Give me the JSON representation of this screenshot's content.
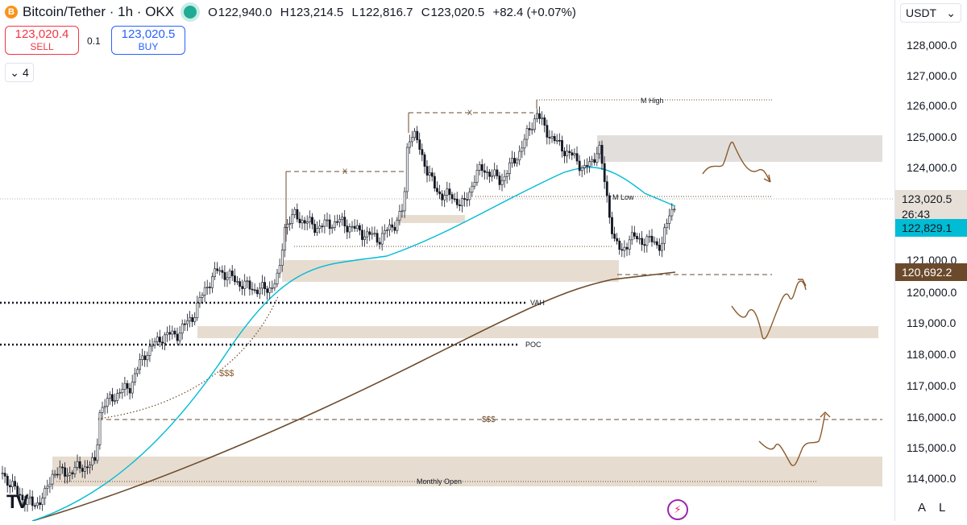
{
  "header": {
    "symbol": "Bitcoin/Tether",
    "sep1": "·",
    "interval": "1h",
    "sep2": "·",
    "exchange": "OKX",
    "coin_icon": "B",
    "ohlc": {
      "o_label": "O",
      "o": "122,940.0",
      "h_label": "H",
      "h": "123,214.5",
      "l_label": "L",
      "l": "122,816.7",
      "c_label": "C",
      "c": "123,020.5",
      "change": "+82.4 (+0.07%)"
    }
  },
  "trade": {
    "sell_price": "123,020.4",
    "sell_label": "SELL",
    "qty": "0.1",
    "buy_price": "123,020.5",
    "buy_label": "BUY"
  },
  "indicators_toggle": {
    "chevron": "⌄",
    "count": "4"
  },
  "axis": {
    "currency": "USDT",
    "currency_chevron": "⌄",
    "ticks": [
      "128,000.0",
      "127,000.0",
      "126,000.0",
      "125,000.0",
      "124,000.0",
      "121,000.0",
      "120,000.0",
      "119,000.0",
      "118,000.0",
      "117,000.0",
      "116,000.0",
      "115,000.0",
      "114,000.0"
    ],
    "price_tag": "123,020.5",
    "countdown": "26:43",
    "ema_tag": "122,829.1",
    "ma_tag": "120,692.2",
    "auto_btn": "A",
    "log_btn": "L"
  },
  "labels": {
    "m_high": "M High",
    "m_low": "M Low",
    "x1": "X",
    "x2": "X",
    "vah": "VAH",
    "poc": "POC",
    "liq1": "$$$",
    "liq2": "$$$",
    "monthly_open": "Monthly Open"
  },
  "logo": "TV",
  "colors": {
    "bull": "#ffffff",
    "bear": "#131722",
    "ema": "#00bcd4",
    "ma": "#6b4a2c",
    "zone": "#e7dcd0",
    "zone_gray": "#e2dedc",
    "annotation": "#8a5a2c"
  },
  "chart_data": {
    "type": "candlestick",
    "price_levels": {
      "last": 123020.5,
      "m_high": 126200,
      "m_low": 123020,
      "vah": 119990,
      "poc": 118290,
      "liquidity_level": 115900,
      "monthly_open": 113900
    },
    "y_range": [
      113000,
      128500
    ]
  }
}
